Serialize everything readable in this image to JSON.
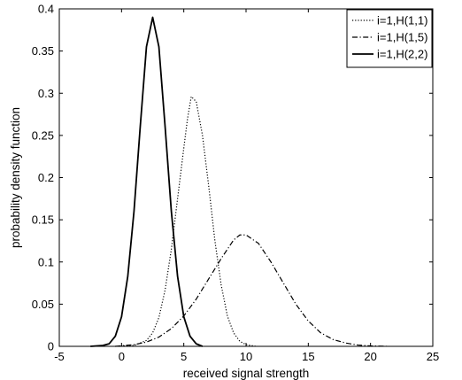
{
  "chart_data": {
    "type": "line",
    "title": "",
    "xlabel": "received signal strength",
    "ylabel": "probability density function",
    "xlim": [
      -5,
      25
    ],
    "ylim": [
      0,
      0.4
    ],
    "xticks": [
      -5,
      0,
      5,
      10,
      15,
      20,
      25
    ],
    "yticks": [
      0,
      0.05,
      0.1,
      0.15,
      0.2,
      0.25,
      0.3,
      0.35,
      0.4
    ],
    "xtick_labels": [
      "-5",
      "0",
      "5",
      "10",
      "15",
      "20",
      "25"
    ],
    "ytick_labels": [
      "0",
      "0.05",
      "0.1",
      "0.15",
      "0.2",
      "0.25",
      "0.3",
      "0.35",
      "0.4"
    ],
    "grid": false,
    "legend_position": "top-right",
    "series": [
      {
        "name": "i=1,H(1,1)",
        "line_style": "dotted",
        "color": "#000000",
        "x": [
          -0.5,
          1,
          2,
          2.5,
          3,
          3.5,
          4,
          4.5,
          5,
          5.3,
          5.6,
          6,
          6.5,
          7,
          7.5,
          8,
          8.5,
          9,
          9.5,
          10,
          10.8
        ],
        "y": [
          0.0,
          0.001,
          0.007,
          0.016,
          0.034,
          0.067,
          0.115,
          0.175,
          0.235,
          0.27,
          0.296,
          0.29,
          0.25,
          0.19,
          0.125,
          0.073,
          0.036,
          0.016,
          0.006,
          0.002,
          0.0
        ]
      },
      {
        "name": "i=1,H(1,5)",
        "line_style": "dashdot",
        "color": "#000000",
        "x": [
          -0.5,
          1,
          2,
          3,
          4,
          5,
          6,
          7,
          8,
          9,
          9.5,
          10,
          11,
          12,
          13,
          14,
          15,
          16,
          17,
          18,
          19,
          20,
          21.5
        ],
        "y": [
          0.0,
          0.002,
          0.005,
          0.011,
          0.021,
          0.036,
          0.056,
          0.08,
          0.104,
          0.126,
          0.132,
          0.132,
          0.122,
          0.1,
          0.075,
          0.05,
          0.03,
          0.016,
          0.008,
          0.004,
          0.0015,
          0.0005,
          0.0
        ]
      },
      {
        "name": "i=1,H(2,2)",
        "line_style": "solid",
        "color": "#000000",
        "x": [
          -2.5,
          -1.5,
          -1,
          -0.5,
          0,
          0.5,
          1,
          1.5,
          2,
          2.5,
          3,
          3.5,
          4,
          4.5,
          5,
          5.5,
          6,
          6.5
        ],
        "y": [
          0.0,
          0.001,
          0.003,
          0.012,
          0.035,
          0.083,
          0.16,
          0.26,
          0.355,
          0.39,
          0.355,
          0.26,
          0.16,
          0.083,
          0.035,
          0.012,
          0.003,
          0.0
        ]
      }
    ]
  }
}
